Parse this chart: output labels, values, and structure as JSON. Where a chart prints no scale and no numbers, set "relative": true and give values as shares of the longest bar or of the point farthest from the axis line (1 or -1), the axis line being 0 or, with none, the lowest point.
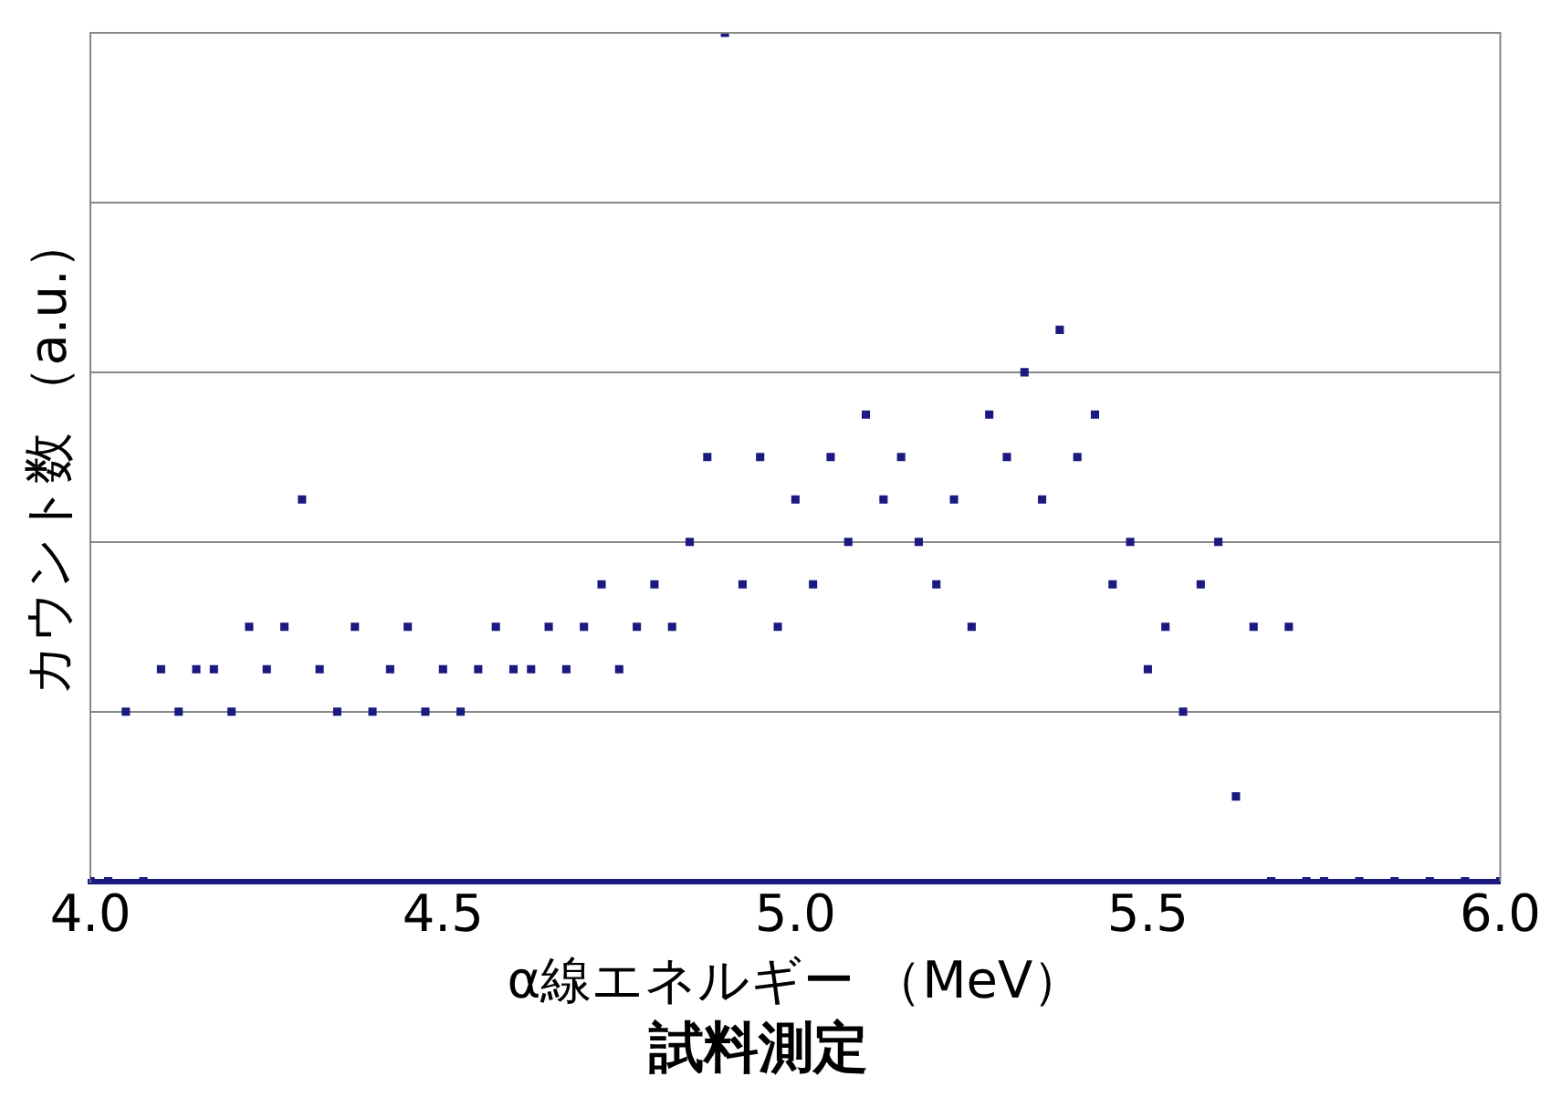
{
  "chart_data": {
    "type": "scatter",
    "title": "試料測定",
    "xlabel": "α線エネルギー （MeV）",
    "ylabel": "カウント数 （a.u.）",
    "relative": true,
    "xlim": [
      4.0,
      6.0
    ],
    "xticks": [
      {
        "value": 4.0,
        "label": "4.0"
      },
      {
        "value": 4.5,
        "label": "4.5"
      },
      {
        "value": 5.0,
        "label": "5.0"
      },
      {
        "value": 5.5,
        "label": "5.5"
      },
      {
        "value": 6.0,
        "label": "6.0"
      }
    ],
    "grid": "y",
    "legend": false,
    "marker": "square",
    "x": [
      4.0,
      4.025,
      4.05,
      4.075,
      4.1,
      4.125,
      4.15,
      4.175,
      4.2,
      4.225,
      4.25,
      4.275,
      4.3,
      4.325,
      4.35,
      4.375,
      4.4,
      4.425,
      4.45,
      4.475,
      4.5,
      4.525,
      4.55,
      4.575,
      4.6,
      4.625,
      4.65,
      4.675,
      4.7,
      4.725,
      4.75,
      4.775,
      4.8,
      4.825,
      4.85,
      4.875,
      4.9,
      4.925,
      4.95,
      4.975,
      5.0,
      5.025,
      5.05,
      5.075,
      5.1,
      5.125,
      5.15,
      5.175,
      5.2,
      5.225,
      5.25,
      5.275,
      5.3,
      5.325,
      5.35,
      5.375,
      5.4,
      5.425,
      5.45,
      5.475,
      5.5,
      5.525,
      5.55,
      5.575,
      5.6,
      5.625,
      5.65,
      5.675,
      5.7,
      5.725,
      5.75,
      5.8,
      5.85,
      5.9,
      5.95,
      6.0
    ],
    "series": [
      {
        "color": "#1a1a80",
        "values": [
          0,
          0,
          0.2,
          0,
          0.25,
          0.2,
          0.25,
          0.25,
          0.2,
          0.3,
          0.25,
          0.3,
          0.45,
          0.25,
          0.2,
          0.3,
          0.2,
          0.25,
          0.3,
          0.2,
          0.25,
          0.2,
          0.25,
          0.3,
          0.25,
          0.25,
          0.3,
          0.25,
          0.3,
          0.35,
          0.25,
          0.3,
          0.35,
          0.3,
          0.4,
          0.5,
          1,
          0.35,
          0.5,
          0.3,
          0.45,
          0.35,
          0.5,
          0.4,
          0.55,
          0.45,
          0.5,
          0.4,
          0.35,
          0.45,
          0.3,
          0.55,
          0.5,
          0.6,
          0.45,
          0.65,
          0.5,
          0.55,
          0.35,
          0.4,
          0.25,
          0.3,
          0.2,
          0.35,
          0.4,
          0.1,
          0.3,
          0,
          0.3,
          0,
          0,
          0,
          0,
          0,
          0,
          0
        ]
      }
    ]
  }
}
